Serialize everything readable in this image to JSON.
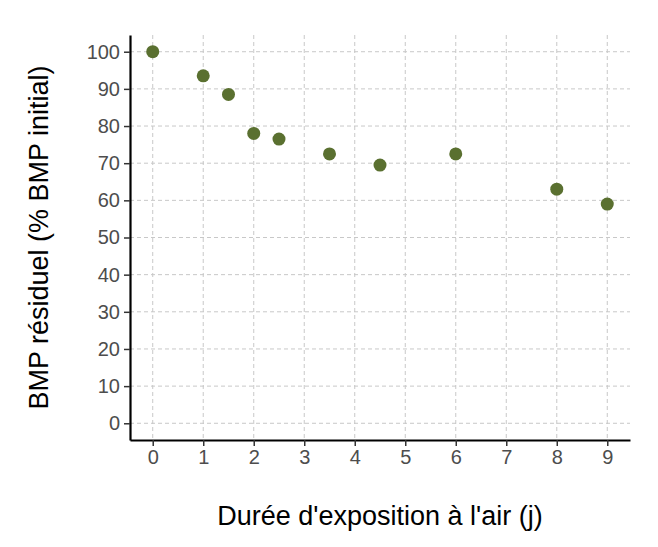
{
  "chart_data": {
    "type": "scatter",
    "x_label": "Durée d'exposition à l'air (j)",
    "y_label": "BMP résiduel (% BMP initial)",
    "x": [
      0,
      1,
      1.5,
      2,
      2.5,
      3.5,
      4.5,
      6,
      8,
      9
    ],
    "values": [
      100,
      93.5,
      88.5,
      78,
      76.5,
      72.5,
      69.5,
      72.5,
      63,
      59
    ],
    "color": "#5a7030",
    "xlim": [
      -0.45,
      9.45
    ],
    "ylim": [
      -4.5,
      104.5
    ],
    "xticks": [
      0,
      1,
      2,
      3,
      4,
      5,
      6,
      7,
      8,
      9
    ],
    "yticks": [
      0,
      10,
      20,
      30,
      40,
      50,
      60,
      70,
      80,
      90,
      100
    ],
    "grid": true
  }
}
